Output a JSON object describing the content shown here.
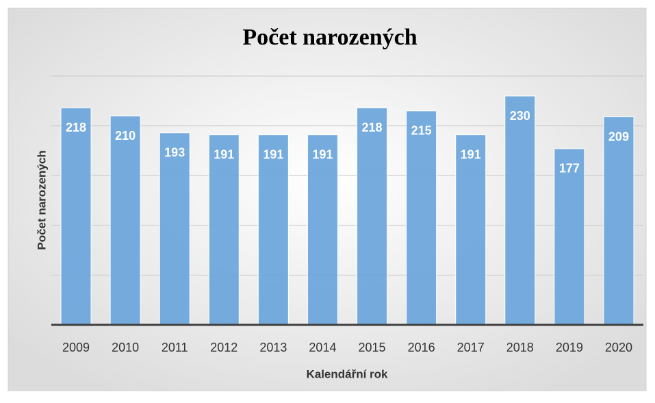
{
  "chart_data": {
    "type": "bar",
    "title": "Počet narozených",
    "x_label": "Kalendářní rok",
    "y_label": "Počet narozených",
    "categories": [
      "2009",
      "2010",
      "2011",
      "2012",
      "2013",
      "2014",
      "2015",
      "2016",
      "2017",
      "2018",
      "2019",
      "2020"
    ],
    "values": [
      218,
      210,
      193,
      191,
      191,
      191,
      218,
      215,
      191,
      230,
      177,
      209
    ],
    "color": "#6fa8dc",
    "ylim": [
      0,
      250
    ],
    "yticks": [
      0,
      50,
      100,
      150,
      200,
      250
    ],
    "grid": true
  }
}
